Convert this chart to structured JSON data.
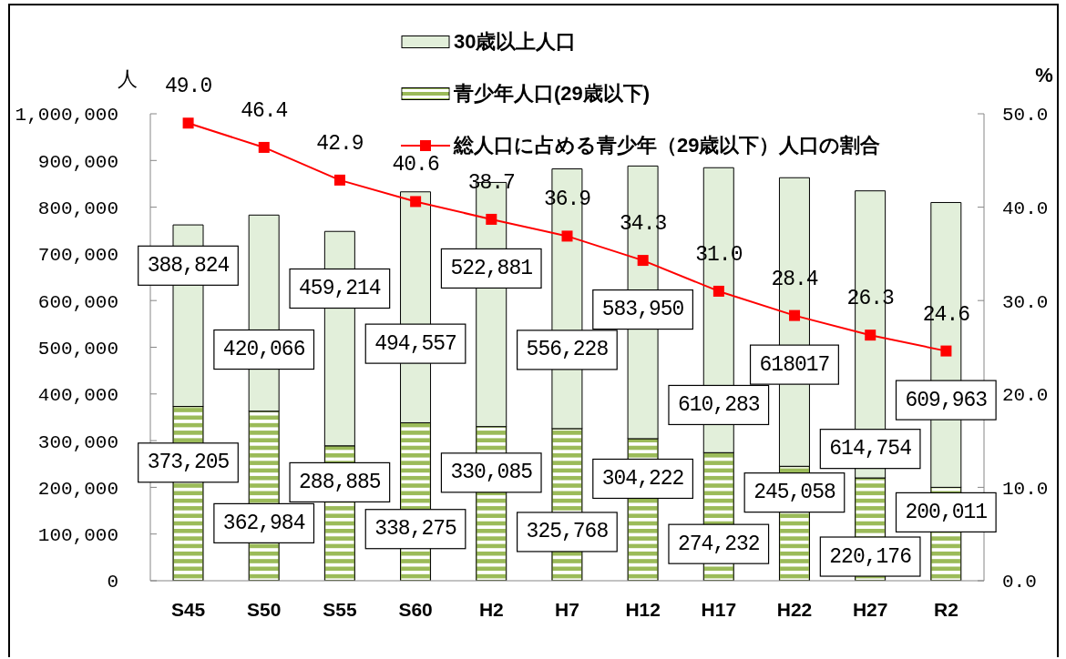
{
  "chart_data": {
    "type": "bar",
    "stacked": true,
    "legend": "top",
    "categories": [
      "S45",
      "S50",
      "S55",
      "S60",
      "H2",
      "H7",
      "H12",
      "H17",
      "H22",
      "H27",
      "R2"
    ],
    "ylabel": "人",
    "y2label": "%",
    "ylim": [
      0,
      1000000
    ],
    "yticks": [
      {
        "value": 0,
        "label": "0"
      },
      {
        "value": 100000,
        "label": "100,000"
      },
      {
        "value": 200000,
        "label": "200,000"
      },
      {
        "value": 300000,
        "label": "300,000"
      },
      {
        "value": 400000,
        "label": "400,000"
      },
      {
        "value": 500000,
        "label": "500,000"
      },
      {
        "value": 600000,
        "label": "600,000"
      },
      {
        "value": 700000,
        "label": "700,000"
      },
      {
        "value": 800000,
        "label": "800,000"
      },
      {
        "value": 900000,
        "label": "900,000"
      },
      {
        "value": 1000000,
        "label": "1,000,000"
      }
    ],
    "y2lim": [
      0,
      50
    ],
    "y2ticks": [
      {
        "value": 0,
        "label": "0.0"
      },
      {
        "value": 10,
        "label": "10.0"
      },
      {
        "value": 20,
        "label": "20.0"
      },
      {
        "value": 30,
        "label": "30.0"
      },
      {
        "value": 40,
        "label": "40.0"
      },
      {
        "value": 50,
        "label": "50.0"
      }
    ],
    "series": [
      {
        "name": "青少年人口(29歳以下)",
        "color": "#9bbb59",
        "values": [
          373205,
          362984,
          288885,
          338275,
          330085,
          325768,
          304222,
          274232,
          245058,
          220176,
          200011
        ],
        "value_labels": [
          "373,205",
          "362,984",
          "288,885",
          "338,275",
          "330,085",
          "325,768",
          "304,222",
          "274,232",
          "245,058",
          "220,176",
          "200,011"
        ]
      },
      {
        "name": "30歳以上人口",
        "color": "#e2efda",
        "values": [
          388824,
          420066,
          459214,
          494557,
          522881,
          556228,
          583950,
          610283,
          618017,
          614754,
          609963
        ],
        "value_labels": [
          "388,824",
          "420,066",
          "459,214",
          "494,557",
          "522,881",
          "556,228",
          "583,950",
          "610,283",
          "618017",
          "614,754",
          "609,963"
        ]
      },
      {
        "name": "総人口に占める青少年（29歳以下）人口の割合",
        "type": "line",
        "axis": "y2",
        "color": "#ff0000",
        "marker": "square",
        "line_style": "solid",
        "values": [
          49.0,
          46.4,
          42.9,
          40.6,
          38.7,
          36.9,
          34.3,
          31.0,
          28.4,
          26.3,
          24.6
        ],
        "value_labels": [
          "49.0",
          "46.4",
          "42.9",
          "40.6",
          "38.7",
          "36.9",
          "34.3",
          "31.0",
          "28.4",
          "26.3",
          "24.6"
        ]
      }
    ]
  }
}
